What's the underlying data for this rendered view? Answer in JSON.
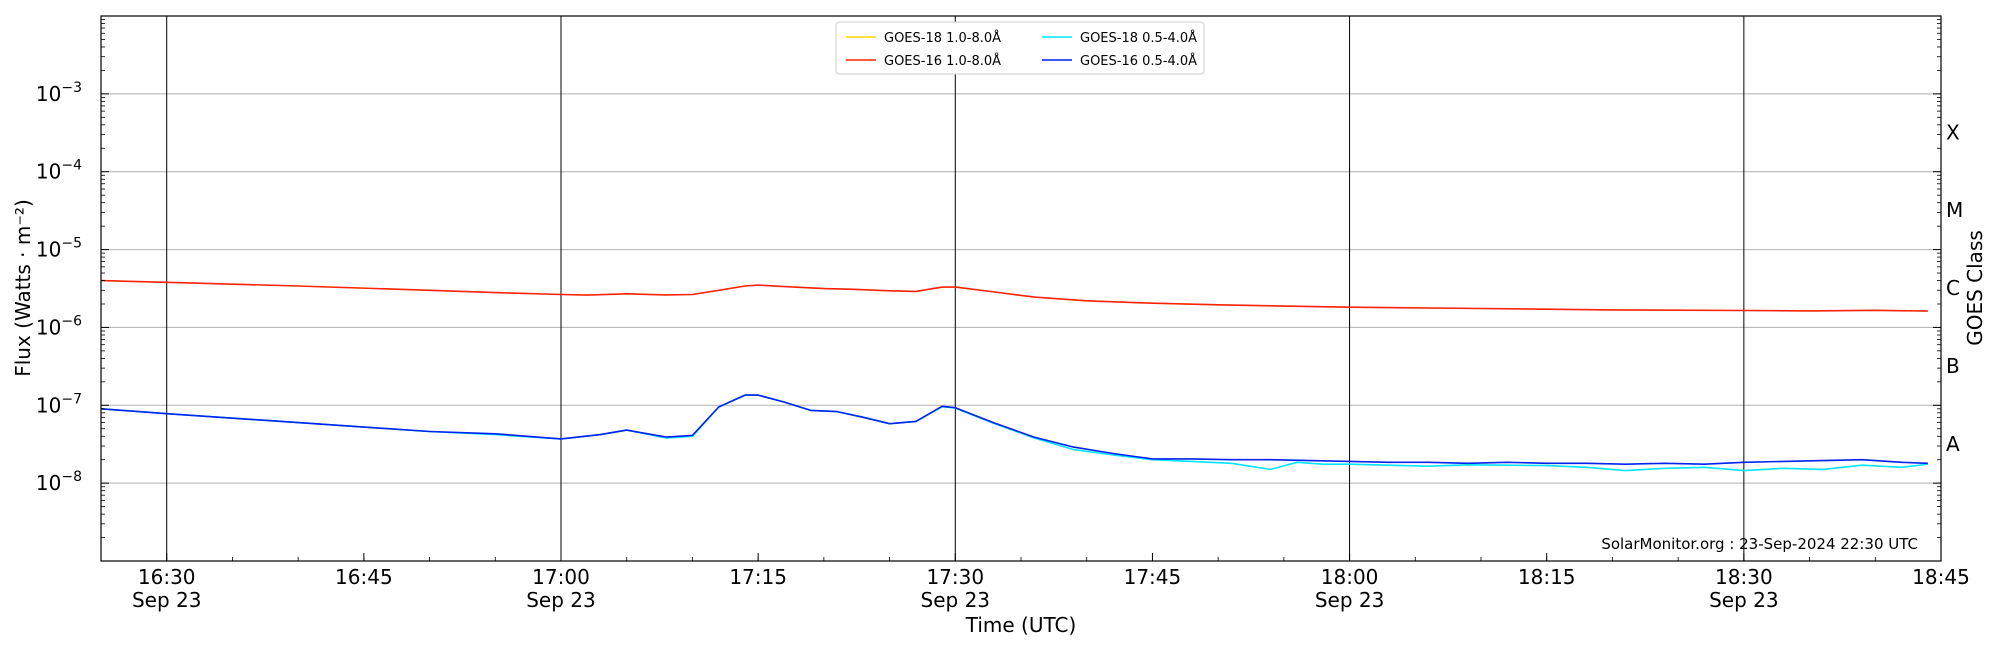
{
  "chart_data": {
    "type": "line",
    "xlabel": "Time (UTC)",
    "ylabel": "Flux (Watts · m⁻²)",
    "ylabel_right": "GOES Class",
    "y_scale": "log",
    "ylim": [
      1e-09,
      0.01
    ],
    "xlim": [
      "2024-09-23 16:25",
      "2024-09-23 18:45"
    ],
    "grid": "horizontal at each decade",
    "legend": "top-center",
    "watermark": "SolarMonitor.org : 23-Sep-2024 22:30 UTC",
    "y_ticks": [
      {
        "value": 0.001,
        "label": "10",
        "exp": "−3"
      },
      {
        "value": 0.0001,
        "label": "10",
        "exp": "−4"
      },
      {
        "value": 1e-05,
        "label": "10",
        "exp": "−5"
      },
      {
        "value": 1e-06,
        "label": "10",
        "exp": "−6"
      },
      {
        "value": 1e-07,
        "label": "10",
        "exp": "−7"
      },
      {
        "value": 1e-08,
        "label": "10",
        "exp": "−8"
      }
    ],
    "x_ticks": [
      {
        "time": "16:30",
        "label": "16:30",
        "sublabel": "Sep 23"
      },
      {
        "time": "16:45",
        "label": "16:45",
        "sublabel": ""
      },
      {
        "time": "17:00",
        "label": "17:00",
        "sublabel": "Sep 23"
      },
      {
        "time": "17:15",
        "label": "17:15",
        "sublabel": ""
      },
      {
        "time": "17:30",
        "label": "17:30",
        "sublabel": "Sep 23"
      },
      {
        "time": "17:45",
        "label": "17:45",
        "sublabel": ""
      },
      {
        "time": "18:00",
        "label": "18:00",
        "sublabel": "Sep 23"
      },
      {
        "time": "18:15",
        "label": "18:15",
        "sublabel": ""
      },
      {
        "time": "18:30",
        "label": "18:30",
        "sublabel": "Sep 23"
      },
      {
        "time": "18:45",
        "label": "18:45",
        "sublabel": ""
      }
    ],
    "vertical_lines": [
      "16:30",
      "17:00",
      "17:30",
      "18:00",
      "18:30"
    ],
    "goes_classes": [
      {
        "label": "A",
        "flux": 1e-08
      },
      {
        "label": "B",
        "flux": 1e-07
      },
      {
        "label": "C",
        "flux": 1e-06
      },
      {
        "label": "M",
        "flux": 1e-05
      },
      {
        "label": "X",
        "flux": 0.0001
      }
    ],
    "series": [
      {
        "name": "GOES-18 1.0-8.0Å",
        "color": "#ffd700",
        "x": [],
        "y": []
      },
      {
        "name": "GOES-16 1.0-8.0Å",
        "color": "#ff2200",
        "x": [
          "16:25",
          "16:30",
          "16:40",
          "16:50",
          "16:55",
          "17:00",
          "17:02",
          "17:05",
          "17:08",
          "17:10",
          "17:12",
          "17:14",
          "17:15",
          "17:17",
          "17:20",
          "17:22",
          "17:25",
          "17:27",
          "17:29",
          "17:30",
          "17:33",
          "17:36",
          "17:40",
          "17:45",
          "17:50",
          "17:55",
          "18:00",
          "18:10",
          "18:20",
          "18:30",
          "18:35",
          "18:40",
          "18:44"
        ],
        "y": [
          4e-06,
          3.8e-06,
          3.4e-06,
          3e-06,
          2.8e-06,
          2.65e-06,
          2.6e-06,
          2.7e-06,
          2.62e-06,
          2.65e-06,
          3e-06,
          3.4e-06,
          3.5e-06,
          3.35e-06,
          3.15e-06,
          3.1e-06,
          2.95e-06,
          2.9e-06,
          3.3e-06,
          3.3e-06,
          2.85e-06,
          2.45e-06,
          2.2e-06,
          2.05e-06,
          1.95e-06,
          1.88e-06,
          1.82e-06,
          1.75e-06,
          1.68e-06,
          1.65e-06,
          1.63e-06,
          1.66e-06,
          1.62e-06
        ]
      },
      {
        "name": "GOES-18 0.5-4.0Å",
        "color": "#00e5ff",
        "x": [
          "16:25",
          "16:30",
          "16:40",
          "16:50",
          "16:55",
          "17:00",
          "17:03",
          "17:05",
          "17:08",
          "17:10",
          "17:12",
          "17:14",
          "17:15",
          "17:17",
          "17:19",
          "17:21",
          "17:23",
          "17:25",
          "17:27",
          "17:29",
          "17:30",
          "17:33",
          "17:36",
          "17:39",
          "17:42",
          "17:45",
          "17:48",
          "17:51",
          "17:54",
          "17:56",
          "17:58",
          "18:00",
          "18:03",
          "18:06",
          "18:09",
          "18:12",
          "18:15",
          "18:18",
          "18:21",
          "18:24",
          "18:27",
          "18:30",
          "18:33",
          "18:36",
          "18:39",
          "18:42",
          "18:44"
        ],
        "y": [
          9e-08,
          7.8e-08,
          6e-08,
          4.6e-08,
          4.2e-08,
          3.7e-08,
          4.2e-08,
          4.8e-08,
          3.8e-08,
          4e-08,
          9.5e-08,
          1.35e-07,
          1.35e-07,
          1.1e-07,
          8.6e-08,
          8.3e-08,
          7e-08,
          5.8e-08,
          6.2e-08,
          9.6e-08,
          9.2e-08,
          5.8e-08,
          3.8e-08,
          2.7e-08,
          2.3e-08,
          2e-08,
          1.9e-08,
          1.8e-08,
          1.5e-08,
          1.85e-08,
          1.75e-08,
          1.75e-08,
          1.7e-08,
          1.65e-08,
          1.72e-08,
          1.7e-08,
          1.68e-08,
          1.6e-08,
          1.45e-08,
          1.55e-08,
          1.6e-08,
          1.45e-08,
          1.55e-08,
          1.5e-08,
          1.7e-08,
          1.6e-08,
          1.75e-08
        ]
      },
      {
        "name": "GOES-16 0.5-4.0Å",
        "color": "#0022ee",
        "x": [
          "16:25",
          "16:30",
          "16:40",
          "16:50",
          "16:55",
          "17:00",
          "17:03",
          "17:05",
          "17:08",
          "17:10",
          "17:12",
          "17:14",
          "17:15",
          "17:17",
          "17:19",
          "17:21",
          "17:23",
          "17:25",
          "17:27",
          "17:29",
          "17:30",
          "17:33",
          "17:36",
          "17:39",
          "17:42",
          "17:45",
          "17:48",
          "17:51",
          "17:54",
          "17:57",
          "18:00",
          "18:03",
          "18:06",
          "18:09",
          "18:12",
          "18:15",
          "18:18",
          "18:21",
          "18:24",
          "18:27",
          "18:30",
          "18:33",
          "18:36",
          "18:39",
          "18:42",
          "18:44"
        ],
        "y": [
          9e-08,
          7.8e-08,
          6e-08,
          4.6e-08,
          4.3e-08,
          3.7e-08,
          4.2e-08,
          4.8e-08,
          3.9e-08,
          4.1e-08,
          9.5e-08,
          1.35e-07,
          1.35e-07,
          1.1e-07,
          8.6e-08,
          8.3e-08,
          7e-08,
          5.8e-08,
          6.2e-08,
          9.7e-08,
          9.3e-08,
          5.9e-08,
          3.9e-08,
          2.9e-08,
          2.4e-08,
          2.05e-08,
          2.05e-08,
          2e-08,
          2e-08,
          1.95e-08,
          1.9e-08,
          1.85e-08,
          1.85e-08,
          1.8e-08,
          1.85e-08,
          1.8e-08,
          1.8e-08,
          1.75e-08,
          1.8e-08,
          1.75e-08,
          1.85e-08,
          1.9e-08,
          1.95e-08,
          2e-08,
          1.85e-08,
          1.8e-08
        ]
      }
    ]
  }
}
